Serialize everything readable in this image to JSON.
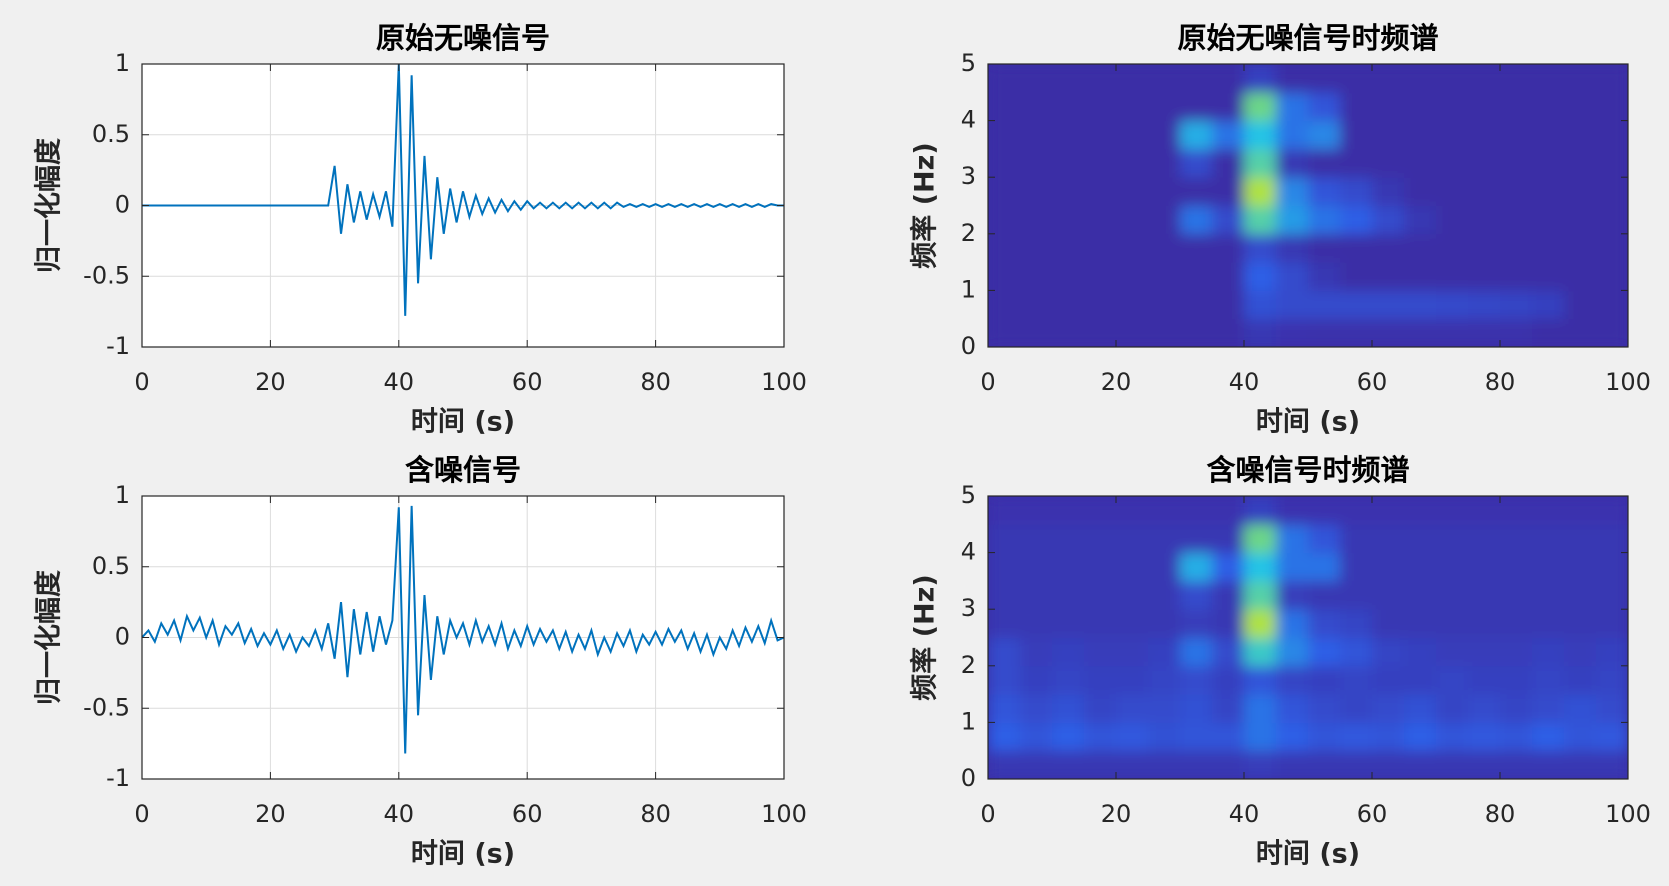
{
  "chart_data": [
    {
      "type": "line",
      "title": "原始无噪信号",
      "xlabel": "时间 (s)",
      "ylabel": "归一化幅度",
      "x": [
        0,
        1,
        2,
        3,
        4,
        5,
        6,
        7,
        8,
        9,
        10,
        11,
        12,
        13,
        14,
        15,
        16,
        17,
        18,
        19,
        20,
        21,
        22,
        23,
        24,
        25,
        26,
        27,
        28,
        29,
        30,
        31,
        32,
        33,
        34,
        35,
        36,
        37,
        38,
        39,
        40,
        41,
        42,
        43,
        44,
        45,
        46,
        47,
        48,
        49,
        50,
        51,
        52,
        53,
        54,
        55,
        56,
        57,
        58,
        59,
        60,
        61,
        62,
        63,
        64,
        65,
        66,
        67,
        68,
        69,
        70,
        71,
        72,
        73,
        74,
        75,
        76,
        77,
        78,
        79,
        80,
        81,
        82,
        83,
        84,
        85,
        86,
        87,
        88,
        89,
        90,
        91,
        92,
        93,
        94,
        95,
        96,
        97,
        98,
        99,
        100
      ],
      "series": [
        {
          "color": "#0072bd",
          "values": [
            0,
            0,
            0,
            0,
            0,
            0,
            0,
            0,
            0,
            0,
            0,
            0,
            0,
            0,
            0,
            0,
            0,
            0,
            0,
            0,
            0,
            0,
            0,
            0,
            0,
            0,
            0,
            0,
            0,
            0,
            0.28,
            -0.2,
            0.15,
            -0.12,
            0.1,
            -0.1,
            0.08,
            -0.08,
            0.1,
            -0.15,
            1.0,
            -0.78,
            0.92,
            -0.55,
            0.35,
            -0.38,
            0.2,
            -0.2,
            0.12,
            -0.12,
            0.1,
            -0.08,
            0.07,
            -0.06,
            0.05,
            -0.05,
            0.04,
            -0.04,
            0.03,
            -0.03,
            0.03,
            -0.02,
            0.02,
            -0.02,
            0.02,
            -0.02,
            0.02,
            -0.02,
            0.02,
            -0.02,
            0.02,
            -0.02,
            0.02,
            -0.02,
            0.02,
            -0.01,
            0.01,
            -0.01,
            0.01,
            -0.01,
            0.01,
            -0.01,
            0.01,
            -0.01,
            0.01,
            -0.01,
            0.01,
            -0.01,
            0.01,
            -0.01,
            0.01,
            -0.01,
            0.01,
            -0.01,
            0.01,
            -0.01,
            0.01,
            -0.01,
            0.01,
            0,
            0
          ]
        }
      ],
      "xlim": [
        0,
        100
      ],
      "ylim": [
        -1,
        1
      ],
      "xticks": [
        0,
        20,
        40,
        60,
        80,
        100
      ],
      "yticks": [
        -1,
        -0.5,
        0,
        0.5,
        1
      ],
      "grid": true
    },
    {
      "type": "heatmap",
      "title": "原始无噪信号时频谱",
      "xlabel": "时间 (s)",
      "ylabel": "频率 (Hz)",
      "xbins": [
        0,
        5,
        10,
        15,
        20,
        25,
        30,
        35,
        40,
        45,
        50,
        55,
        60,
        65,
        70,
        75,
        80,
        85,
        90,
        95,
        100
      ],
      "ybins": [
        0,
        0.5,
        1,
        1.5,
        2,
        2.5,
        3,
        3.5,
        4,
        4.5,
        5
      ],
      "values": [
        [
          0,
          0,
          0,
          0,
          0,
          0,
          0,
          0,
          0.05,
          0.03,
          0.02,
          0.02,
          0.02,
          0.02,
          0.02,
          0.02,
          0.02,
          0,
          0,
          0
        ],
        [
          0,
          0,
          0,
          0,
          0,
          0,
          0,
          0,
          0.18,
          0.15,
          0.15,
          0.15,
          0.15,
          0.15,
          0.14,
          0.13,
          0.12,
          0.1,
          0,
          0
        ],
        [
          0,
          0,
          0,
          0,
          0,
          0,
          0,
          0,
          0.25,
          0.15,
          0.05,
          0,
          0,
          0,
          0,
          0,
          0,
          0,
          0,
          0
        ],
        [
          0,
          0,
          0,
          0,
          0,
          0,
          0,
          0,
          0.15,
          0.05,
          0,
          0,
          0,
          0,
          0,
          0,
          0,
          0,
          0,
          0
        ],
        [
          0,
          0,
          0,
          0,
          0,
          0,
          0.3,
          0.15,
          0.6,
          0.4,
          0.3,
          0.25,
          0.15,
          0.05,
          0,
          0,
          0,
          0,
          0,
          0
        ],
        [
          0,
          0,
          0,
          0,
          0,
          0,
          0,
          0,
          0.8,
          0.35,
          0.2,
          0.15,
          0.05,
          0,
          0,
          0,
          0,
          0,
          0,
          0
        ],
        [
          0,
          0,
          0,
          0,
          0,
          0,
          0.15,
          0,
          0.6,
          0.05,
          0,
          0,
          0,
          0,
          0,
          0,
          0,
          0,
          0,
          0
        ],
        [
          0,
          0,
          0,
          0,
          0,
          0,
          0.45,
          0.3,
          0.5,
          0.3,
          0.35,
          0,
          0,
          0,
          0,
          0,
          0,
          0,
          0,
          0
        ],
        [
          0,
          0,
          0,
          0,
          0,
          0,
          0,
          0,
          0.65,
          0.3,
          0.2,
          0,
          0,
          0,
          0,
          0,
          0,
          0,
          0,
          0
        ],
        [
          0,
          0,
          0,
          0,
          0,
          0,
          0,
          0,
          0.1,
          0,
          0,
          0,
          0,
          0,
          0,
          0,
          0,
          0,
          0,
          0
        ]
      ],
      "colors": [
        "#3b2da6",
        "#2f5fe6",
        "#22c3e6",
        "#9ee34a",
        "#f5e020"
      ],
      "xlim": [
        0,
        100
      ],
      "ylim": [
        0,
        5
      ],
      "xticks": [
        0,
        20,
        40,
        60,
        80,
        100
      ],
      "yticks": [
        0,
        1,
        2,
        3,
        4,
        5
      ],
      "grid": false
    },
    {
      "type": "line",
      "title": "含噪信号",
      "xlabel": "时间 (s)",
      "ylabel": "归一化幅度",
      "x": [
        0,
        1,
        2,
        3,
        4,
        5,
        6,
        7,
        8,
        9,
        10,
        11,
        12,
        13,
        14,
        15,
        16,
        17,
        18,
        19,
        20,
        21,
        22,
        23,
        24,
        25,
        26,
        27,
        28,
        29,
        30,
        31,
        32,
        33,
        34,
        35,
        36,
        37,
        38,
        39,
        40,
        41,
        42,
        43,
        44,
        45,
        46,
        47,
        48,
        49,
        50,
        51,
        52,
        53,
        54,
        55,
        56,
        57,
        58,
        59,
        60,
        61,
        62,
        63,
        64,
        65,
        66,
        67,
        68,
        69,
        70,
        71,
        72,
        73,
        74,
        75,
        76,
        77,
        78,
        79,
        80,
        81,
        82,
        83,
        84,
        85,
        86,
        87,
        88,
        89,
        90,
        91,
        92,
        93,
        94,
        95,
        96,
        97,
        98,
        99,
        100
      ],
      "series": [
        {
          "color": "#0072bd",
          "values": [
            0,
            0.05,
            -0.03,
            0.1,
            0.02,
            0.12,
            -0.02,
            0.15,
            0.05,
            0.14,
            0,
            0.12,
            -0.05,
            0.08,
            0.02,
            0.1,
            -0.04,
            0.06,
            -0.06,
            0.03,
            -0.05,
            0.05,
            -0.08,
            0.02,
            -0.1,
            0,
            -0.06,
            0.05,
            -0.08,
            0.1,
            -0.15,
            0.25,
            -0.28,
            0.2,
            -0.12,
            0.18,
            -0.1,
            0.15,
            -0.05,
            0.12,
            0.92,
            -0.82,
            0.93,
            -0.55,
            0.3,
            -0.3,
            0.15,
            -0.12,
            0.12,
            0,
            0.1,
            -0.05,
            0.12,
            -0.03,
            0.08,
            -0.05,
            0.1,
            -0.08,
            0.05,
            -0.06,
            0.08,
            -0.05,
            0.06,
            -0.03,
            0.05,
            -0.08,
            0.04,
            -0.1,
            0.02,
            -0.08,
            0.05,
            -0.12,
            0,
            -0.1,
            0.03,
            -0.06,
            0.05,
            -0.1,
            0.02,
            -0.05,
            0.04,
            -0.05,
            0.06,
            -0.03,
            0.05,
            -0.08,
            0.03,
            -0.1,
            0.02,
            -0.12,
            0,
            -0.08,
            0.05,
            -0.06,
            0.07,
            -0.03,
            0.08,
            -0.04,
            0.12,
            -0.02,
            0
          ]
        }
      ],
      "xlim": [
        0,
        100
      ],
      "ylim": [
        -1,
        1
      ],
      "xticks": [
        0,
        20,
        40,
        60,
        80,
        100
      ],
      "yticks": [
        -1,
        -0.5,
        0,
        0.5,
        1
      ],
      "grid": true
    },
    {
      "type": "heatmap",
      "title": "含噪信号时频谱",
      "xlabel": "时间 (s)",
      "ylabel": "频率 (Hz)",
      "xbins": [
        0,
        5,
        10,
        15,
        20,
        25,
        30,
        35,
        40,
        45,
        50,
        55,
        60,
        65,
        70,
        75,
        80,
        85,
        90,
        95,
        100
      ],
      "ybins": [
        0,
        0.5,
        1,
        1.5,
        2,
        2.5,
        3,
        3.5,
        4,
        4.5,
        5
      ],
      "values": [
        [
          0.05,
          0.05,
          0.05,
          0.05,
          0.05,
          0.05,
          0.05,
          0.05,
          0.08,
          0.05,
          0.05,
          0.05,
          0.05,
          0.05,
          0.05,
          0.05,
          0.05,
          0.05,
          0.05,
          0.05
        ],
        [
          0.25,
          0.2,
          0.25,
          0.2,
          0.22,
          0.18,
          0.2,
          0.2,
          0.3,
          0.25,
          0.2,
          0.22,
          0.2,
          0.25,
          0.2,
          0.22,
          0.2,
          0.25,
          0.2,
          0.22
        ],
        [
          0.2,
          0.15,
          0.18,
          0.12,
          0.15,
          0.15,
          0.18,
          0.12,
          0.3,
          0.2,
          0.15,
          0.12,
          0.15,
          0.18,
          0.12,
          0.15,
          0.12,
          0.15,
          0.18,
          0.15
        ],
        [
          0.15,
          0.1,
          0.12,
          0.1,
          0.1,
          0.12,
          0.15,
          0.1,
          0.2,
          0.12,
          0.1,
          0.12,
          0.1,
          0.1,
          0.12,
          0.1,
          0.1,
          0.12,
          0.1,
          0.12
        ],
        [
          0.15,
          0.08,
          0.1,
          0.08,
          0.08,
          0.1,
          0.3,
          0.15,
          0.55,
          0.35,
          0.25,
          0.2,
          0.12,
          0.1,
          0.08,
          0.08,
          0.08,
          0.1,
          0.08,
          0.1
        ],
        [
          0.05,
          0.05,
          0.05,
          0.05,
          0.05,
          0.05,
          0.08,
          0.05,
          0.8,
          0.3,
          0.15,
          0.12,
          0.05,
          0.05,
          0.05,
          0.05,
          0.05,
          0.05,
          0.05,
          0.05
        ],
        [
          0.05,
          0.05,
          0.05,
          0.05,
          0.05,
          0.05,
          0.15,
          0.05,
          0.6,
          0.08,
          0.05,
          0.05,
          0.05,
          0.05,
          0.05,
          0.05,
          0.05,
          0.05,
          0.05,
          0.05
        ],
        [
          0.05,
          0.05,
          0.05,
          0.05,
          0.05,
          0.05,
          0.45,
          0.25,
          0.5,
          0.3,
          0.3,
          0.05,
          0.05,
          0.05,
          0.05,
          0.05,
          0.05,
          0.05,
          0.05,
          0.05
        ],
        [
          0.05,
          0.05,
          0.05,
          0.05,
          0.05,
          0.05,
          0.05,
          0.05,
          0.65,
          0.3,
          0.2,
          0.05,
          0.05,
          0.05,
          0.05,
          0.05,
          0.05,
          0.05,
          0.05,
          0.05
        ],
        [
          0.03,
          0.03,
          0.03,
          0.03,
          0.03,
          0.03,
          0.03,
          0.03,
          0.1,
          0.03,
          0.03,
          0.03,
          0.03,
          0.03,
          0.03,
          0.03,
          0.03,
          0.03,
          0.03,
          0.03
        ]
      ],
      "colors": [
        "#3b2da6",
        "#2f5fe6",
        "#22c3e6",
        "#9ee34a",
        "#f5e020"
      ],
      "xlim": [
        0,
        100
      ],
      "ylim": [
        0,
        5
      ],
      "xticks": [
        0,
        20,
        40,
        60,
        80,
        100
      ],
      "yticks": [
        0,
        1,
        2,
        3,
        4,
        5
      ],
      "grid": false
    }
  ]
}
